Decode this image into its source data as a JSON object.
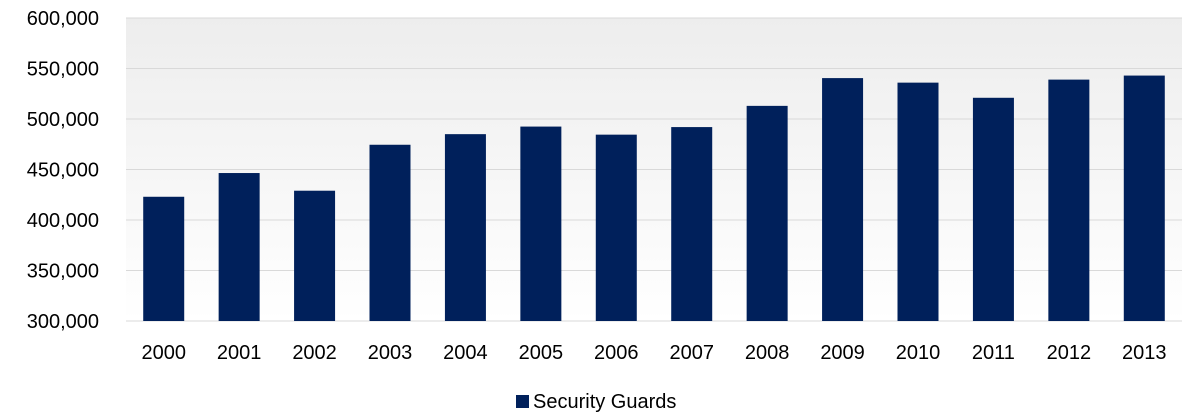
{
  "chart_data": {
    "type": "bar",
    "categories": [
      "2000",
      "2001",
      "2002",
      "2003",
      "2004",
      "2005",
      "2006",
      "2007",
      "2008",
      "2009",
      "2010",
      "2011",
      "2012",
      "2013"
    ],
    "series": [
      {
        "name": "Security Guards",
        "values": [
          423000,
          446500,
          429000,
          474500,
          485000,
          492500,
          484500,
          492000,
          513000,
          540500,
          536000,
          521000,
          539000,
          543000
        ],
        "color": "#00205b"
      }
    ],
    "ylim": [
      300000,
      600000
    ],
    "yticks": [
      300000,
      350000,
      400000,
      450000,
      500000,
      550000,
      600000
    ],
    "ytick_labels": [
      "300,000",
      "350,000",
      "400,000",
      "450,000",
      "500,000",
      "550,000",
      "600,000"
    ],
    "title": "",
    "xlabel": "",
    "ylabel": "",
    "grid": true,
    "legend_position": "bottom-center",
    "colors": {
      "bar": "#00205b",
      "gridline": "#d9d9d9",
      "plot_background_top": "#ededed",
      "plot_background_bottom": "#ffffff"
    }
  }
}
